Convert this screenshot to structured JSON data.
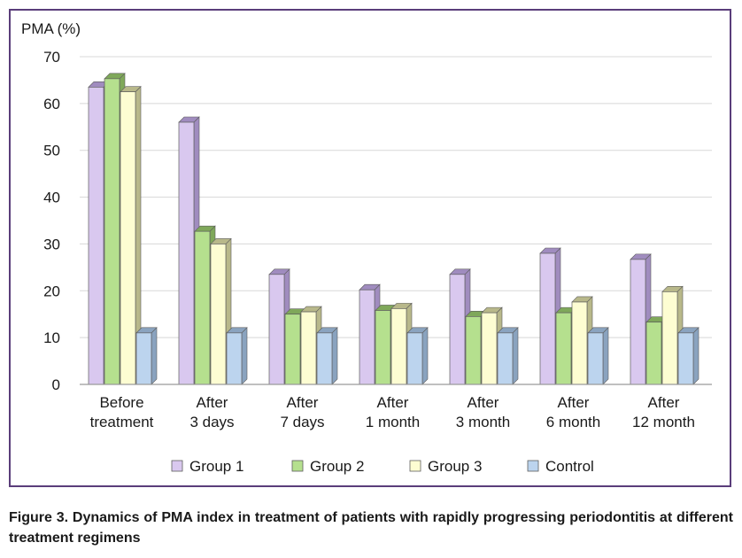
{
  "caption": "Figure 3. Dynamics of PMA index in treatment of patients with rapidly progressing periodontitis at different treatment regimens",
  "chart_data": {
    "type": "bar",
    "title": "",
    "ylabel": "PMA (%)",
    "xlabel": "",
    "ylim": [
      0,
      70
    ],
    "yticks": [
      0,
      10,
      20,
      30,
      40,
      50,
      60,
      70
    ],
    "grid": true,
    "legend_position": "bottom",
    "categories": [
      [
        "Before",
        "treatment"
      ],
      [
        "After",
        "3 days"
      ],
      [
        "After",
        "7 days"
      ],
      [
        "After",
        "1 month"
      ],
      [
        "After",
        "3 month"
      ],
      [
        "After",
        "6 month"
      ],
      [
        "After",
        "12 month"
      ]
    ],
    "series": [
      {
        "name": "Group 1",
        "color": "#d9c8ef",
        "side": "#a08cbf",
        "values": [
          63.5,
          56,
          23.5,
          20.2,
          23.5,
          28,
          26.7
        ]
      },
      {
        "name": "Group 2",
        "color": "#b5e08e",
        "side": "#7fa85a",
        "values": [
          65.3,
          32.7,
          15,
          15.8,
          14.5,
          15.3,
          13.3
        ]
      },
      {
        "name": "Group 3",
        "color": "#fdfdd2",
        "side": "#b8b88a",
        "values": [
          62.5,
          30,
          15.5,
          16.2,
          15.3,
          17.6,
          19.8
        ]
      },
      {
        "name": "Control",
        "color": "#bcd4ee",
        "side": "#8aa3bf",
        "values": [
          11,
          11,
          11,
          11,
          11,
          11,
          11
        ]
      }
    ]
  }
}
